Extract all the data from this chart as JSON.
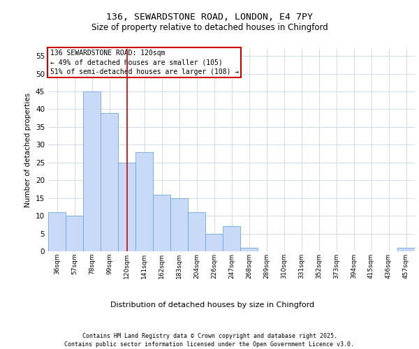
{
  "title_line1": "136, SEWARDSTONE ROAD, LONDON, E4 7PY",
  "title_line2": "Size of property relative to detached houses in Chingford",
  "xlabel": "Distribution of detached houses by size in Chingford",
  "ylabel": "Number of detached properties",
  "categories": [
    "36sqm",
    "57sqm",
    "78sqm",
    "99sqm",
    "120sqm",
    "141sqm",
    "162sqm",
    "183sqm",
    "204sqm",
    "226sqm",
    "247sqm",
    "268sqm",
    "289sqm",
    "310sqm",
    "331sqm",
    "352sqm",
    "373sqm",
    "394sqm",
    "415sqm",
    "436sqm",
    "457sqm"
  ],
  "values": [
    11,
    10,
    45,
    39,
    25,
    28,
    16,
    15,
    11,
    5,
    7,
    1,
    0,
    0,
    0,
    0,
    0,
    0,
    0,
    0,
    1
  ],
  "bar_color": "#c9daf8",
  "bar_edge_color": "#6fa8dc",
  "vline_x": 4,
  "vline_color": "#cc0000",
  "annotation_box_text": "136 SEWARDSTONE ROAD: 120sqm\n← 49% of detached houses are smaller (105)\n51% of semi-detached houses are larger (108) →",
  "annotation_box_color": "#cc0000",
  "annotation_text_fontsize": 7.0,
  "ylim": [
    0,
    57
  ],
  "yticks": [
    0,
    5,
    10,
    15,
    20,
    25,
    30,
    35,
    40,
    45,
    50,
    55
  ],
  "footnote": "Contains HM Land Registry data © Crown copyright and database right 2025.\nContains public sector information licensed under the Open Government Licence v3.0.",
  "background_color": "#ffffff",
  "grid_color": "#c9d4e8",
  "title1_fontsize": 9.5,
  "title2_fontsize": 8.5,
  "footnote_fontsize": 6.0,
  "ylabel_fontsize": 7.5,
  "xlabel_fontsize": 8.0,
  "ytick_fontsize": 7.5,
  "xtick_fontsize": 6.5
}
